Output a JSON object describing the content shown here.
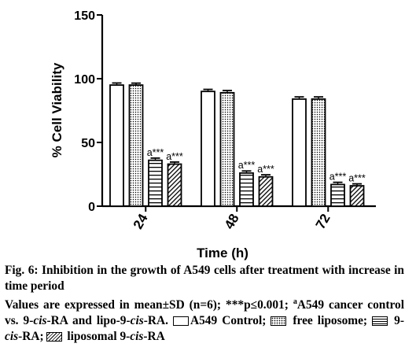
{
  "chart_data": {
    "type": "bar",
    "ylabel": "% Cell Viability",
    "xlabel": "Time (h)",
    "ylim": [
      0,
      150
    ],
    "yticks": [
      "0",
      "50",
      "100",
      "150"
    ],
    "categories": [
      "24",
      "48",
      "72"
    ],
    "series": [
      {
        "name": "A549 Control",
        "pattern": "none",
        "values": [
          95,
          90,
          84
        ],
        "errors": [
          0.7,
          0.7,
          0.8
        ]
      },
      {
        "name": "free liposome",
        "pattern": "dots",
        "values": [
          95,
          89,
          84
        ],
        "errors": [
          0.6,
          0.8,
          0.8
        ]
      },
      {
        "name": "9-cis-RA",
        "pattern": "horizontal",
        "values": [
          36,
          26,
          17
        ],
        "errors": [
          0.8,
          0.7,
          0.8
        ],
        "annotation": "a***"
      },
      {
        "name": "liposomal 9-cis-RA",
        "pattern": "diagonal",
        "values": [
          33,
          23,
          16
        ],
        "errors": [
          0.7,
          0.7,
          0.6
        ],
        "annotation": "a***"
      }
    ]
  },
  "caption": {
    "title": "Fig. 6: Inhibition in the growth of A549 cells after treatment with increase in time period",
    "note_prefix": "Values are expressed in mean±SD (n=6); ***p≤0.001; ",
    "note_sup": "a",
    "note_a549": "A549 cancer control vs. 9-",
    "cis1": "cis",
    "note_mid": "-RA and lipo-9-",
    "cis2": "cis",
    "note_end": "-RA.",
    "legend_control": "A549 Control;",
    "legend_liposome": "free liposome;",
    "legend_ra_prefix": "9-",
    "legend_ra_cis": "cis",
    "legend_ra_suffix": "-RA;",
    "legend_lipora_prefix": "liposomal 9-",
    "legend_lipora_cis": "cis",
    "legend_lipora_suffix": "-RA"
  },
  "colors": {
    "ink": "#000000",
    "background": "#ffffff"
  }
}
